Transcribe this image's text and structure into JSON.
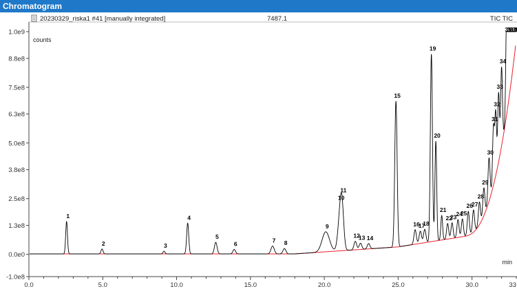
{
  "window": {
    "title": "Chromatogram"
  },
  "header": {
    "trace_label": "20230329_riska1 #41 [manually integrated]",
    "center_value": "7487.1",
    "signal_label": "TIC TIC"
  },
  "colors": {
    "titlebar": "#1f78c8",
    "trace": "#000000",
    "baseline": "#e8202a",
    "peak_label": "#000000",
    "tick_label": "#333333"
  },
  "chart_data": {
    "type": "line",
    "title": "",
    "xlabel": "min",
    "ylabel": "counts",
    "xlim": [
      0.0,
      33.0
    ],
    "ylim": [
      -100000000.0,
      1000000000.0
    ],
    "grid": false,
    "x_tick_labels": [
      "0.0",
      "5.0",
      "10.0",
      "15.0",
      "20.0",
      "25.0",
      "30.0",
      "33"
    ],
    "x_tick_values": [
      0.0,
      5.0,
      10.0,
      15.0,
      20.0,
      25.0,
      30.0,
      33.0
    ],
    "y_tick_labels": [
      "1.0e9",
      "8.8e8",
      "7.5e8",
      "6.3e8",
      "5.0e8",
      "3.8e8",
      "2.5e8",
      "1.3e8",
      "0.0e0",
      "-1.0e8"
    ],
    "y_tick_values": [
      1000000000.0,
      880000000.0,
      750000000.0,
      630000000.0,
      500000000.0,
      380000000.0,
      250000000.0,
      130000000.0,
      0.0,
      -100000000.0
    ],
    "baseline_start": 2000000.0,
    "peaks": [
      {
        "label": "1",
        "rt": 2.55,
        "height": 145000000.0,
        "width": 0.06
      },
      {
        "label": "2",
        "rt": 4.95,
        "height": 22000000.0,
        "width": 0.07
      },
      {
        "label": "3",
        "rt": 9.15,
        "height": 12000000.0,
        "width": 0.07
      },
      {
        "label": "4",
        "rt": 10.75,
        "height": 138000000.0,
        "width": 0.07
      },
      {
        "label": "5",
        "rt": 12.65,
        "height": 52000000.0,
        "width": 0.09
      },
      {
        "label": "6",
        "rt": 13.9,
        "height": 20000000.0,
        "width": 0.09
      },
      {
        "label": "7",
        "rt": 16.5,
        "height": 35000000.0,
        "width": 0.11
      },
      {
        "label": "8",
        "rt": 17.3,
        "height": 24000000.0,
        "width": 0.1
      },
      {
        "label": "9",
        "rt": 20.1,
        "height": 90000000.0,
        "width": 0.25
      },
      {
        "label": "10",
        "rt": 21.05,
        "height": 135000000.0,
        "width": 0.14
      },
      {
        "label": "11",
        "rt": 21.2,
        "height": 170000000.0,
        "width": 0.12
      },
      {
        "label": "12",
        "rt": 22.1,
        "height": 38000000.0,
        "width": 0.09
      },
      {
        "label": "13",
        "rt": 22.45,
        "height": 28000000.0,
        "width": 0.09
      },
      {
        "label": "14",
        "rt": 23.0,
        "height": 24000000.0,
        "width": 0.09
      },
      {
        "label": "15",
        "rt": 24.85,
        "height": 655000000.0,
        "width": 0.08
      },
      {
        "label": "16",
        "rt": 26.15,
        "height": 65000000.0,
        "width": 0.08
      },
      {
        "label": "17",
        "rt": 26.5,
        "height": 55000000.0,
        "width": 0.08
      },
      {
        "label": "18",
        "rt": 26.8,
        "height": 60000000.0,
        "width": 0.08
      },
      {
        "label": "19",
        "rt": 27.25,
        "height": 842000000.0,
        "width": 0.07
      },
      {
        "label": "20",
        "rt": 27.55,
        "height": 448000000.0,
        "width": 0.06
      },
      {
        "label": "21",
        "rt": 27.95,
        "height": 110000000.0,
        "width": 0.06
      },
      {
        "label": "22",
        "rt": 28.35,
        "height": 70000000.0,
        "width": 0.07
      },
      {
        "label": "23",
        "rt": 28.65,
        "height": 70000000.0,
        "width": 0.07
      },
      {
        "label": "24",
        "rt": 29.05,
        "height": 80000000.0,
        "width": 0.07
      },
      {
        "label": "25",
        "rt": 29.35,
        "height": 80000000.0,
        "width": 0.07
      },
      {
        "label": "26",
        "rt": 29.75,
        "height": 108000000.0,
        "width": 0.07
      },
      {
        "label": "27",
        "rt": 30.1,
        "height": 100000000.0,
        "width": 0.07
      },
      {
        "label": "28",
        "rt": 30.5,
        "height": 102000000.0,
        "width": 0.07
      },
      {
        "label": "29",
        "rt": 30.8,
        "height": 125000000.0,
        "width": 0.07
      },
      {
        "label": "30",
        "rt": 31.15,
        "height": 195000000.0,
        "width": 0.07
      },
      {
        "label": "31",
        "rt": 31.45,
        "height": 260000000.0,
        "width": 0.06
      },
      {
        "label": "32",
        "rt": 31.6,
        "height": 285000000.0,
        "width": 0.06
      },
      {
        "label": "33",
        "rt": 31.8,
        "height": 310000000.0,
        "width": 0.06
      },
      {
        "label": "34",
        "rt": 32.0,
        "height": 355000000.0,
        "width": 0.06
      },
      {
        "label": "35",
        "rt": 32.35,
        "height": 490000000.0,
        "width": 0.06
      },
      {
        "label": "36",
        "rt": 32.5,
        "height": 560000000.0,
        "width": 0.06
      },
      {
        "label": "37",
        "rt": 32.7,
        "height": 670000000.0,
        "width": 0.06
      },
      {
        "label": "38",
        "rt": 32.85,
        "height": 660000000.0,
        "width": 0.06
      },
      {
        "label": "39",
        "rt": 33.0,
        "height": 870000000.0,
        "width": 0.06
      }
    ]
  }
}
